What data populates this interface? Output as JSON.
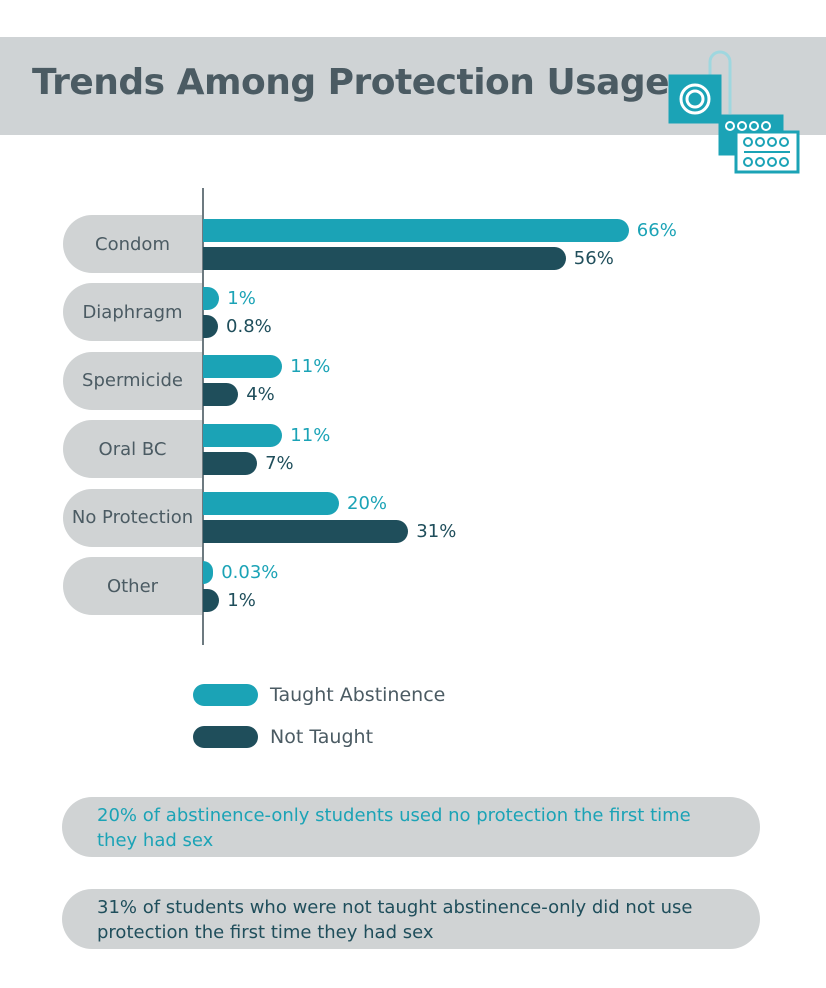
{
  "chart_data": {
    "type": "bar",
    "orientation": "horizontal",
    "title": "Trends Among Protection Usage",
    "categories": [
      "Condom",
      "Diaphragm",
      "Spermicide",
      "Oral BC",
      "No Protection",
      "Other"
    ],
    "series": [
      {
        "name": "Taught Abstinence",
        "color": "#1ba3b6",
        "values": [
          66,
          1,
          11,
          11,
          20,
          0.03
        ],
        "value_labels": [
          "66%",
          "1%",
          "11%",
          "11%",
          "20%",
          "0.03%"
        ]
      },
      {
        "name": "Not Taught",
        "color": "#1f4e5b",
        "values": [
          56,
          0.8,
          4,
          7,
          31,
          1
        ],
        "value_labels": [
          "56%",
          "0.8%",
          "4%",
          "7%",
          "31%",
          "1%"
        ]
      }
    ],
    "notes": [
      "20% of abstinence-only students used no protection the first time they had sex",
      "31% of students who were not taught abstinence-only did not use protection the first time they had sex"
    ]
  }
}
